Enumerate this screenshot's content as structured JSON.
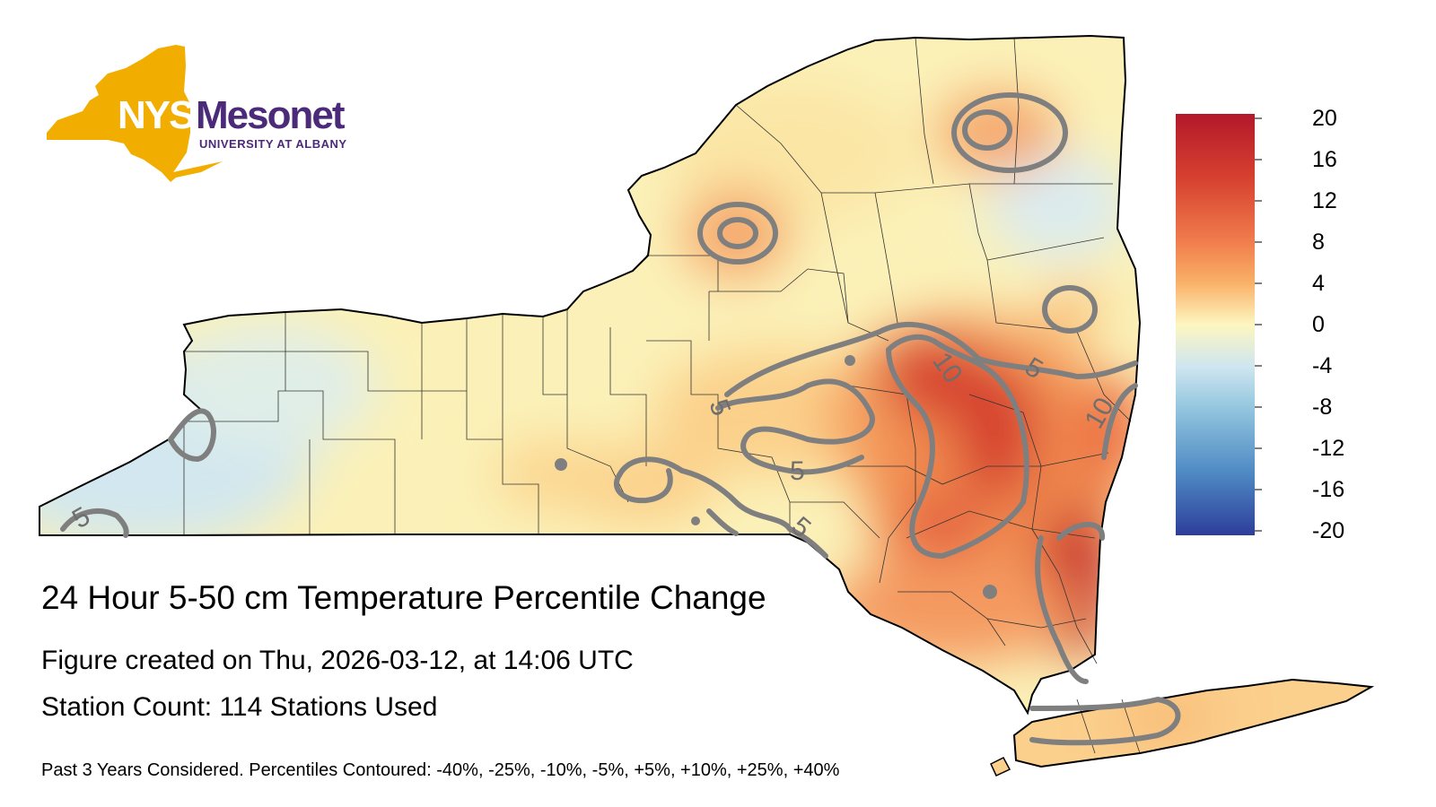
{
  "logo": {
    "nys_text": "NYS",
    "mesonet_text": "Mesonet",
    "university_text": "UNIVERSITY AT ALBANY",
    "logo_gold": "#f2ae00",
    "logo_purple": "#4b2a7a"
  },
  "title": "24 Hour 5-50 cm Temperature Percentile Change",
  "figure_created": "Figure created on Thu, 2026-03-12, at 14:06 UTC",
  "station_count": "Station Count: 114 Stations Used",
  "footnote": "Past 3 Years Considered. Percentiles Contoured: -40%, -25%, -10%, -5%, +5%, +10%, +25%, +40%",
  "colorbar": {
    "ticks": [
      "20",
      "16",
      "12",
      "8",
      "4",
      "0",
      "-4",
      "-8",
      "-12",
      "-16",
      "-20"
    ],
    "min": -20,
    "max": 20,
    "colors": [
      "#b2182b",
      "#d6604d",
      "#f4a582",
      "#fddbc7",
      "#fbf7c4",
      "#d1e5f0",
      "#92c5de",
      "#4393c3",
      "#2d3e9a"
    ]
  },
  "contour_labels": [
    "5",
    "10",
    "5",
    "5",
    "5",
    "10",
    "5"
  ]
}
